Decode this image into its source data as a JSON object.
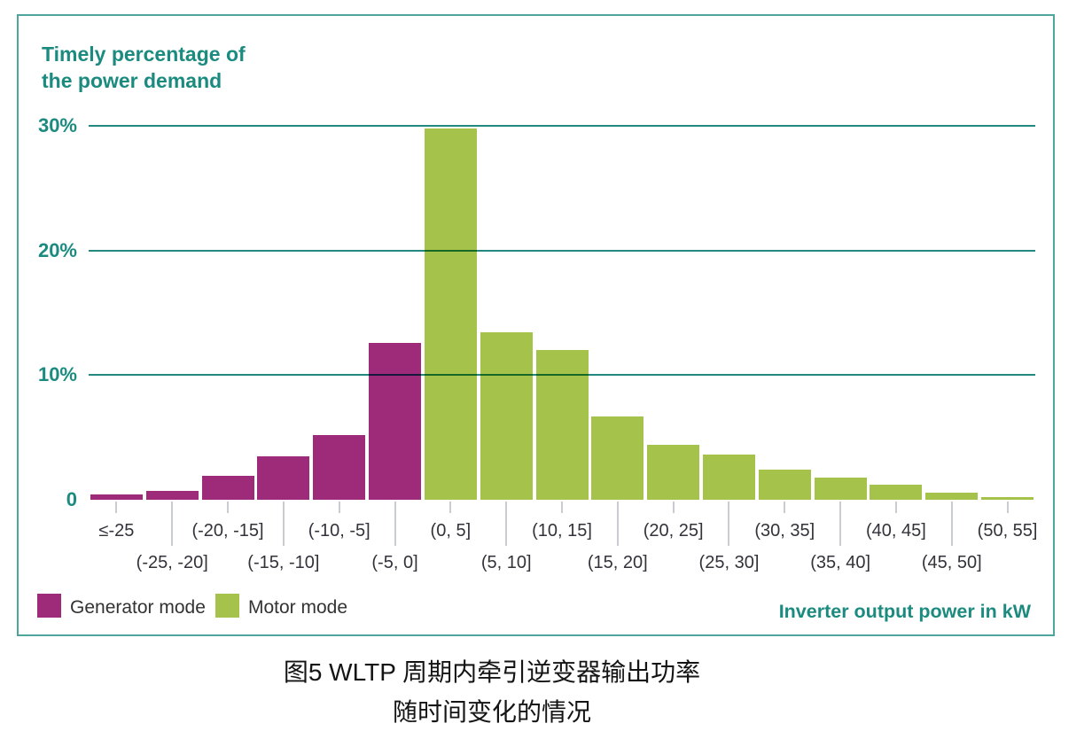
{
  "chart": {
    "title_lines": [
      "Timely percentage of",
      "the power demand"
    ],
    "xlabel": "Inverter output power in kW",
    "y_ticks": [
      {
        "value": 30,
        "label": "30%"
      },
      {
        "value": 20,
        "label": "20%"
      },
      {
        "value": 10,
        "label": "10%"
      },
      {
        "value": 0,
        "label": "0"
      }
    ],
    "grid_values": [
      10,
      20,
      30
    ],
    "colors": {
      "teal_text": "#1b8b7f",
      "grid": "#23897e",
      "border": "#4da59c",
      "generator": "#9e2a7a",
      "motor": "#a5c24b"
    }
  },
  "chart_data": {
    "type": "bar",
    "title": "Timely percentage of the power demand",
    "xlabel": "Inverter output power in kW",
    "ylabel": "Timely percentage of the power demand",
    "ylim": [
      0,
      32
    ],
    "yticks_percent": [
      0,
      10,
      20,
      30
    ],
    "grid": true,
    "legend_position": "bottom-left",
    "categories": [
      "≤-25",
      "(-25, -20]",
      "(-20, -15]",
      "(-15, -10]",
      "(-10, -5]",
      "(-5, 0]",
      "(0, 5]",
      "(5, 10]",
      "(10, 15]",
      "(15, 20]",
      "(20, 25]",
      "(25, 30]",
      "(30, 35]",
      "(35, 40]",
      "(40, 45]",
      "(45, 50]",
      "(50, 55]"
    ],
    "series": [
      {
        "name": "Generator mode",
        "color": "#9e2a7a",
        "values": [
          0.4,
          0.7,
          1.9,
          3.5,
          5.2,
          12.6,
          0,
          0,
          0,
          0,
          0,
          0,
          0,
          0,
          0,
          0,
          0
        ]
      },
      {
        "name": "Motor mode",
        "color": "#a5c24b",
        "values": [
          0,
          0,
          0,
          0,
          0,
          0,
          29.8,
          13.4,
          12.0,
          6.7,
          4.4,
          3.6,
          2.4,
          1.8,
          1.2,
          0.6,
          0.2
        ]
      }
    ]
  },
  "caption": {
    "line1": "图5 WLTP 周期内牵引逆变器输出功率",
    "line2": "随时间变化的情况"
  }
}
